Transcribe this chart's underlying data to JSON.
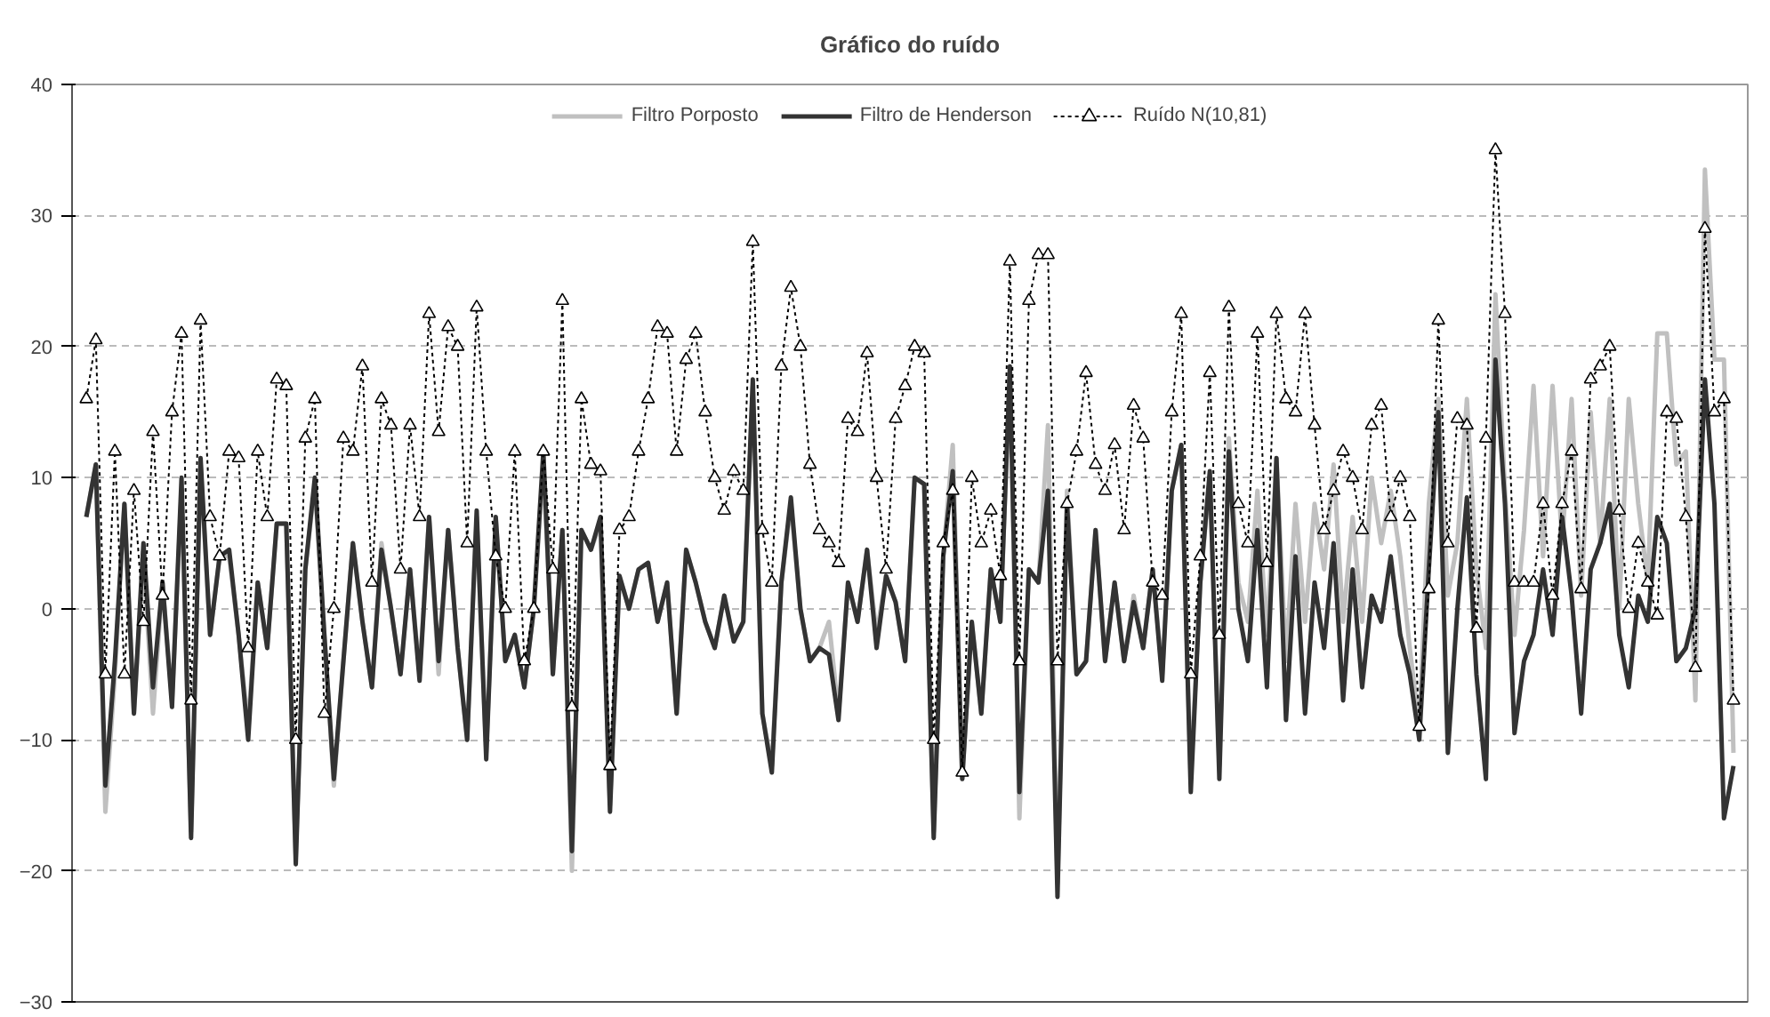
{
  "chart_data": {
    "type": "line",
    "title": "Gráfico do ruído",
    "categories": [
      null,
      null,
      null,
      null,
      null,
      null,
      null,
      null,
      null,
      null,
      null,
      null,
      null,
      null,
      null,
      null,
      null,
      null,
      null,
      null,
      null,
      null,
      null,
      null,
      null,
      null,
      null,
      null,
      null,
      null,
      null,
      null,
      null,
      null,
      null,
      null,
      null,
      null,
      null,
      null,
      null,
      null,
      null,
      null,
      null,
      null,
      null,
      null,
      null,
      null,
      null,
      null,
      null,
      null,
      null,
      null,
      null,
      null,
      null,
      null,
      null,
      null,
      null,
      null,
      null,
      null,
      null,
      null,
      null,
      null,
      null,
      null,
      null,
      null,
      null,
      null,
      null,
      null,
      null,
      null,
      null,
      null,
      null,
      null,
      null,
      null,
      null,
      null,
      null,
      null,
      null,
      null,
      null,
      null,
      null,
      null,
      null,
      null,
      null,
      null,
      null,
      null,
      null,
      null,
      null,
      null,
      null,
      null,
      null,
      null,
      null,
      null,
      null,
      null,
      null,
      null,
      null,
      null,
      null,
      null,
      null,
      null,
      null,
      null,
      null,
      null,
      null,
      null,
      null,
      null,
      null,
      null,
      null,
      null,
      null,
      null,
      null,
      null,
      null,
      null,
      null,
      null,
      null,
      null,
      null,
      null,
      null,
      null,
      null,
      null,
      null,
      null,
      null,
      null,
      null,
      null,
      null,
      null,
      null,
      null,
      null,
      null,
      null,
      null,
      null,
      null,
      null,
      null,
      null,
      null,
      null,
      null,
      null,
      null
    ],
    "series": [
      {
        "name": "Filtro Porposto",
        "color": "#c0c0c0",
        "line_style": "solid",
        "marker": "none",
        "values": [
          7,
          11,
          -15.5,
          -5,
          8,
          -8,
          4,
          -8,
          2,
          -7,
          9,
          -17,
          11,
          -2,
          4,
          4,
          -2,
          -9,
          2,
          -3,
          6.5,
          6.5,
          -19,
          3,
          9.5,
          -2,
          -13.5,
          -4,
          5,
          -1,
          -6,
          5,
          0,
          -5,
          3,
          -5,
          7,
          -5,
          6,
          -3,
          -10,
          7,
          -11,
          7,
          -4,
          -2,
          -6,
          0,
          11,
          -5,
          6,
          -20,
          6,
          4.5,
          6.5,
          -15,
          2.5,
          0,
          3,
          3.5,
          -1,
          2,
          -8,
          4.5,
          2,
          -1,
          -3,
          1,
          -2.5,
          -1,
          17,
          -8,
          -12,
          2,
          8,
          0,
          -4,
          -3,
          -1,
          -8,
          2,
          -1,
          4.5,
          -2,
          2.5,
          0.5,
          -4,
          10,
          9.5,
          -17,
          4,
          12.5,
          -13,
          -1,
          -8,
          3,
          -1,
          18,
          -16,
          3,
          2,
          14,
          -21,
          9,
          -5,
          -4,
          6,
          -4,
          2,
          -4,
          1,
          -3,
          3,
          -5,
          9,
          12.5,
          -13,
          2,
          10,
          -12,
          13,
          2,
          -1,
          9,
          -2,
          11.5,
          -4,
          8,
          -1,
          8,
          3,
          11,
          -1,
          7,
          -1,
          10,
          5,
          9,
          4,
          -3,
          -9,
          8,
          16,
          1,
          5,
          16,
          3,
          -3,
          24,
          9,
          -2,
          6,
          17,
          4,
          17,
          5,
          16,
          1,
          15,
          5,
          16,
          0,
          16,
          8,
          2,
          21,
          21,
          11,
          12,
          -7,
          33.5,
          19,
          19,
          -11
        ]
      },
      {
        "name": "Filtro de Henderson",
        "color": "#333333",
        "line_style": "solid",
        "marker": "none",
        "values": [
          7,
          11,
          -13.5,
          -4,
          8,
          -8,
          5,
          -6,
          2,
          -7.5,
          10,
          -17.5,
          11.5,
          -2,
          4,
          4.5,
          -2,
          -10,
          2,
          -3,
          6.5,
          6.5,
          -19.5,
          3,
          10,
          -2,
          -13,
          -4,
          5,
          -1,
          -6,
          4.5,
          0,
          -5,
          3,
          -5.5,
          7,
          -4,
          6,
          -3,
          -10,
          7.5,
          -11.5,
          7,
          -4,
          -2,
          -6,
          0,
          12,
          -5,
          6,
          -18.5,
          6,
          4.5,
          7,
          -15.5,
          2.5,
          0,
          3,
          3.5,
          -1,
          2,
          -8,
          4.5,
          2,
          -1,
          -3,
          1,
          -2.5,
          -1,
          17.5,
          -8,
          -12.5,
          2,
          8.5,
          0,
          -4,
          -3,
          -3.5,
          -8.5,
          2,
          -1,
          4.5,
          -3,
          2.5,
          0.5,
          -4,
          10,
          9.5,
          -17.5,
          4,
          10.5,
          -13,
          -1,
          -8,
          3,
          -1,
          18.5,
          -14,
          3,
          2,
          9,
          -22,
          8,
          -5,
          -4,
          6,
          -4,
          2,
          -4,
          0.5,
          -3,
          3,
          -5.5,
          9,
          12.5,
          -14,
          2,
          10.5,
          -13,
          12,
          0,
          -4,
          6,
          -6,
          11.5,
          -8.5,
          4,
          -8,
          2,
          -3,
          5,
          -7,
          3,
          -6,
          1,
          -1,
          4,
          -2,
          -5,
          -10,
          3,
          15,
          -11,
          0,
          8.5,
          -5,
          -13,
          19,
          8,
          -9.5,
          -4,
          -2,
          3,
          -2,
          7,
          1,
          -8,
          3,
          5,
          8,
          -2,
          -6,
          1,
          -1,
          7,
          5,
          -4,
          -3,
          0,
          17.5,
          8,
          -16,
          -12
        ]
      },
      {
        "name": "Ruído N(10,81)",
        "color": "#000000",
        "line_style": "dashed",
        "marker": "triangle",
        "values": [
          16,
          20.5,
          -5,
          12,
          -5,
          9,
          -1,
          13.5,
          1,
          15,
          21,
          -7,
          22,
          7,
          4,
          12,
          11.5,
          -3,
          12,
          7,
          17.5,
          17,
          -10,
          13,
          16,
          -8,
          0,
          13,
          12,
          18.5,
          2,
          16,
          14,
          3,
          14,
          7,
          22.5,
          13.5,
          21.5,
          20,
          5,
          23,
          12,
          4,
          0,
          12,
          -4,
          0,
          12,
          3,
          23.5,
          -7.5,
          16,
          11,
          10.5,
          -12,
          6,
          7,
          12,
          16,
          21.5,
          21,
          12,
          19,
          21,
          15,
          10,
          7.5,
          10.5,
          9,
          28,
          6,
          2,
          18.5,
          24.5,
          20,
          11,
          6,
          5,
          3.5,
          14.5,
          13.5,
          19.5,
          10,
          3,
          14.5,
          17,
          20,
          19.5,
          -10,
          5,
          9,
          -12.5,
          10,
          5,
          7.5,
          2.5,
          26.5,
          -4,
          23.5,
          27,
          27,
          -4,
          8,
          12,
          18,
          11,
          9,
          12.5,
          6,
          15.5,
          13,
          2,
          1,
          15,
          22.5,
          -5,
          4,
          18,
          -2,
          23,
          8,
          5,
          21,
          3.5,
          22.5,
          16,
          15,
          22.5,
          14,
          6,
          9,
          12,
          10,
          6,
          14,
          15.5,
          7,
          10,
          7,
          -9,
          1.5,
          22,
          5,
          14.5,
          14,
          -1.5,
          13,
          35,
          22.5,
          2,
          2,
          2,
          8,
          1,
          8,
          12,
          1.5,
          17.5,
          18.5,
          20,
          7.5,
          0,
          5,
          2,
          -0.5,
          15,
          14.5,
          7,
          -4.5,
          29,
          15,
          16,
          -7
        ]
      }
    ],
    "ylim": [
      -30,
      40
    ],
    "yticks": [
      -30,
      -20,
      -10,
      0,
      10,
      20,
      30,
      40
    ],
    "grid": "y",
    "legend": "top"
  }
}
